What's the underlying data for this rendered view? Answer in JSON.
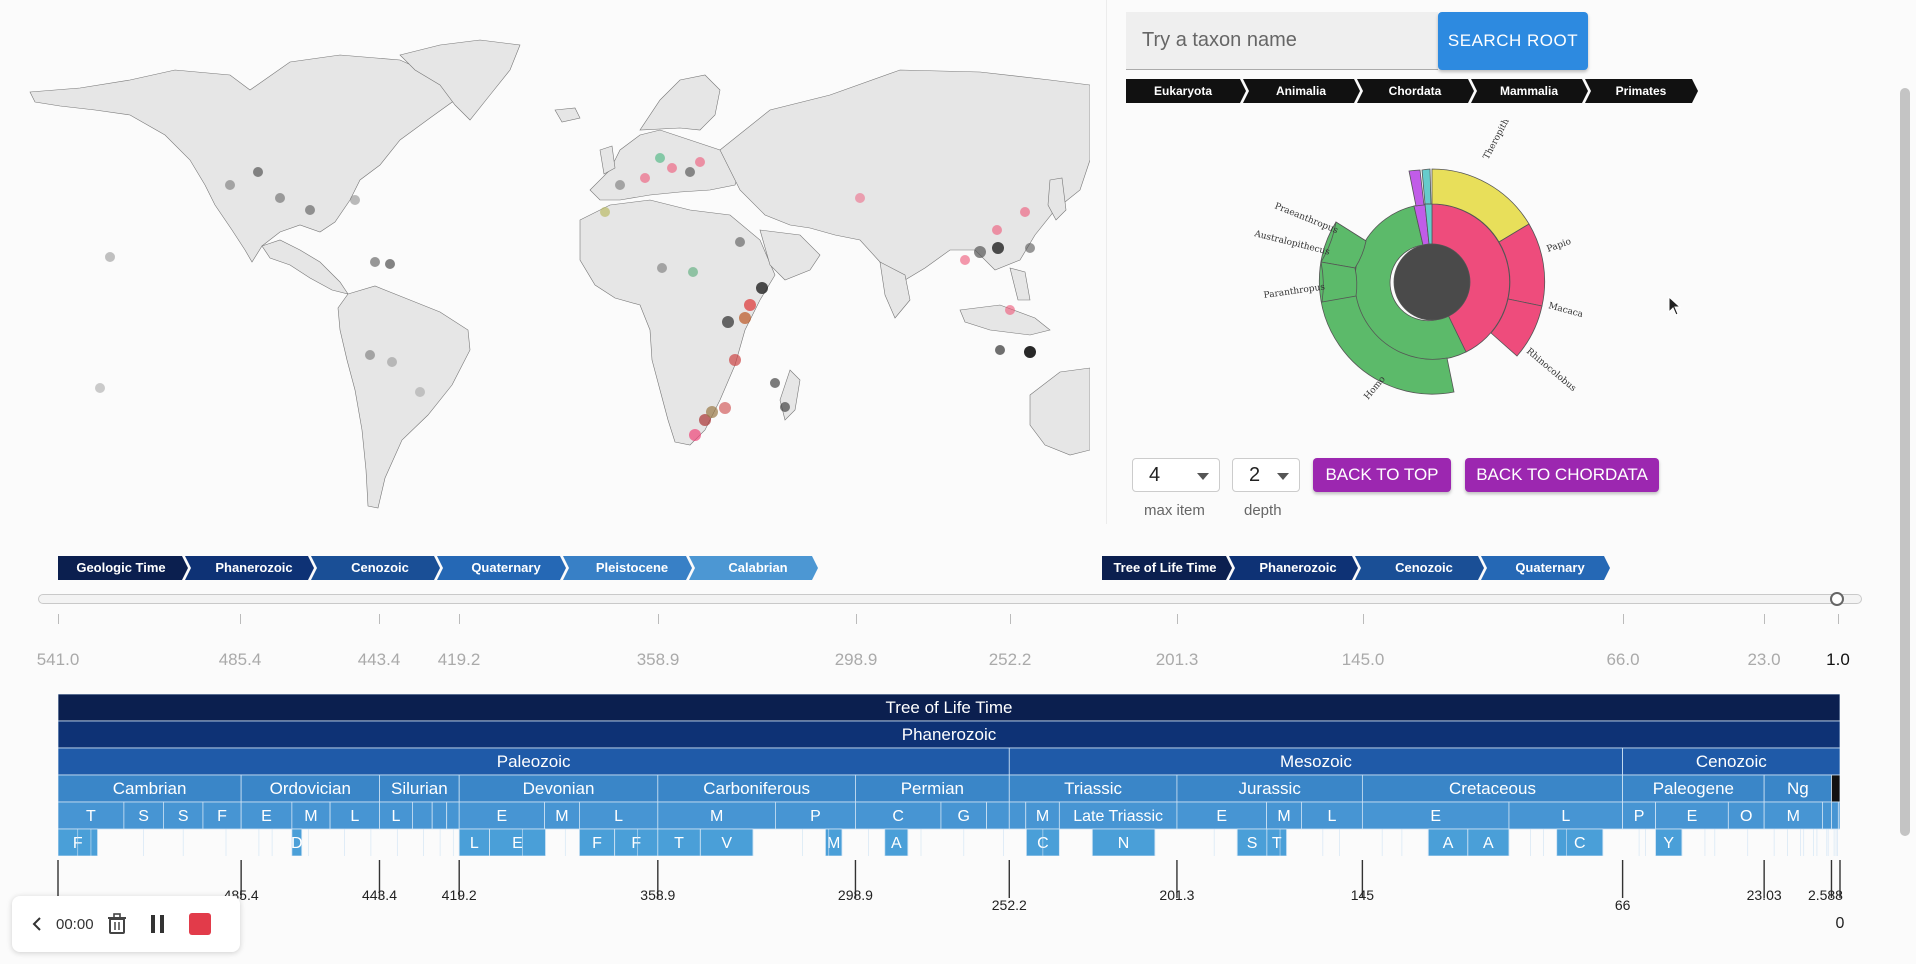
{
  "search": {
    "placeholder": "Try a taxon name",
    "button_label": "SEARCH ROOT"
  },
  "taxon_breadcrumb": [
    "Eukaryota",
    "Animalia",
    "Chordata",
    "Mammalia",
    "Primates"
  ],
  "sunburst": {
    "labels": [
      "Theropithecus",
      "Papio",
      "Macaca",
      "Rhinocolobus",
      "Homo",
      "Paranthropus",
      "Australopithecus",
      "Praeanthropus"
    ],
    "colors": {
      "center": "#4a4a4a",
      "hominid": "#5cba6a",
      "cercopithecid": "#ee4c7c",
      "theropithecus": "#e8df5a",
      "other": "#c15ce8"
    }
  },
  "controls": {
    "max_item_value": "4",
    "max_item_caption": "max item",
    "depth_value": "2",
    "depth_caption": "depth",
    "back_to_top": "BACK TO TOP",
    "back_to_chordata": "BACK TO CHORDATA"
  },
  "geo_breadcrumb": [
    "Geologic Time",
    "Phanerozoic",
    "Cenozoic",
    "Quaternary",
    "Pleistocene",
    "Calabrian"
  ],
  "tree_breadcrumb": [
    "Tree of Life Time",
    "Phanerozoic",
    "Cenozoic",
    "Quaternary"
  ],
  "time_scale": {
    "labels": [
      "541.0",
      "485.4",
      "443.4",
      "419.2",
      "358.9",
      "298.9",
      "252.2",
      "201.3",
      "145.0",
      "66.0",
      "23.0",
      "1.0"
    ],
    "selected": "1.0"
  },
  "chart_data": {
    "type": "table",
    "max_ma": 541,
    "min_ma": 0,
    "rows": [
      {
        "level": "root",
        "units": [
          {
            "name": "Tree of Life Time",
            "start": 541,
            "end": 0
          }
        ]
      },
      {
        "level": "eon",
        "units": [
          {
            "name": "Phanerozoic",
            "start": 541,
            "end": 0
          }
        ]
      },
      {
        "level": "era",
        "units": [
          {
            "name": "Paleozoic",
            "start": 541,
            "end": 252.2
          },
          {
            "name": "Mesozoic",
            "start": 252.2,
            "end": 66
          },
          {
            "name": "Cenozoic",
            "start": 66,
            "end": 0
          }
        ]
      },
      {
        "level": "period",
        "units": [
          {
            "name": "Cambrian",
            "start": 541,
            "end": 485.4
          },
          {
            "name": "Ordovician",
            "start": 485.4,
            "end": 443.4
          },
          {
            "name": "Silurian",
            "start": 443.4,
            "end": 419.2
          },
          {
            "name": "Devonian",
            "start": 419.2,
            "end": 358.9
          },
          {
            "name": "Carboniferous",
            "start": 358.9,
            "end": 298.9
          },
          {
            "name": "Permian",
            "start": 298.9,
            "end": 252.2
          },
          {
            "name": "Triassic",
            "start": 252.2,
            "end": 201.3
          },
          {
            "name": "Jurassic",
            "start": 201.3,
            "end": 145
          },
          {
            "name": "Cretaceous",
            "start": 145,
            "end": 66
          },
          {
            "name": "Paleogene",
            "start": 66,
            "end": 23.03
          },
          {
            "name": "Ng",
            "start": 23.03,
            "end": 2.588
          },
          {
            "name": "",
            "start": 2.588,
            "end": 0
          }
        ]
      },
      {
        "level": "epoch",
        "units": [
          {
            "name": "T",
            "start": 541,
            "end": 521
          },
          {
            "name": "S",
            "start": 521,
            "end": 509
          },
          {
            "name": "S",
            "start": 509,
            "end": 497
          },
          {
            "name": "F",
            "start": 497,
            "end": 485.4
          },
          {
            "name": "E",
            "start": 485.4,
            "end": 470
          },
          {
            "name": "M",
            "start": 470,
            "end": 458.4
          },
          {
            "name": "L",
            "start": 458.4,
            "end": 443.4
          },
          {
            "name": "L",
            "start": 443.4,
            "end": 433.4
          },
          {
            "name": "",
            "start": 433.4,
            "end": 427.4
          },
          {
            "name": "",
            "start": 427.4,
            "end": 423
          },
          {
            "name": "",
            "start": 423,
            "end": 419.2
          },
          {
            "name": "E",
            "start": 419.2,
            "end": 393.3
          },
          {
            "name": "M",
            "start": 393.3,
            "end": 382.7
          },
          {
            "name": "L",
            "start": 382.7,
            "end": 358.9
          },
          {
            "name": "M",
            "start": 358.9,
            "end": 323.2
          },
          {
            "name": "P",
            "start": 323.2,
            "end": 298.9
          },
          {
            "name": "C",
            "start": 298.9,
            "end": 272.95
          },
          {
            "name": "G",
            "start": 272.95,
            "end": 259.1
          },
          {
            "name": "",
            "start": 259.1,
            "end": 252.2
          },
          {
            "name": "",
            "start": 252.2,
            "end": 247.2
          },
          {
            "name": "M",
            "start": 247.2,
            "end": 237
          },
          {
            "name": "Late Triassic",
            "start": 237,
            "end": 201.3
          },
          {
            "name": "E",
            "start": 201.3,
            "end": 174.1
          },
          {
            "name": "M",
            "start": 174.1,
            "end": 163.5
          },
          {
            "name": "L",
            "start": 163.5,
            "end": 145
          },
          {
            "name": "E",
            "start": 145,
            "end": 100.5
          },
          {
            "name": "L",
            "start": 100.5,
            "end": 66
          },
          {
            "name": "P",
            "start": 66,
            "end": 56
          },
          {
            "name": "E",
            "start": 56,
            "end": 33.9
          },
          {
            "name": "O",
            "start": 33.9,
            "end": 23.03
          },
          {
            "name": "M",
            "start": 23.03,
            "end": 5.333
          },
          {
            "name": "",
            "start": 5.333,
            "end": 2.588
          },
          {
            "name": "",
            "start": 2.588,
            "end": 0.5
          },
          {
            "name": "",
            "start": 0.5,
            "end": 0
          }
        ]
      },
      {
        "level": "age",
        "units": [
          {
            "name": "F",
            "start": 541,
            "end": 529
          },
          {
            "name": "D",
            "start": 470,
            "end": 467
          },
          {
            "name": "L",
            "start": 419.2,
            "end": 410
          },
          {
            "name": "E",
            "start": 410,
            "end": 393
          },
          {
            "name": "F",
            "start": 382.7,
            "end": 372
          },
          {
            "name": "F",
            "start": 372,
            "end": 358.9
          },
          {
            "name": "T",
            "start": 358.9,
            "end": 346
          },
          {
            "name": "V",
            "start": 346,
            "end": 330
          },
          {
            "name": "M",
            "start": 308,
            "end": 303
          },
          {
            "name": "A",
            "start": 290,
            "end": 283
          },
          {
            "name": "C",
            "start": 247,
            "end": 237
          },
          {
            "name": "N",
            "start": 227,
            "end": 208
          },
          {
            "name": "S",
            "start": 183,
            "end": 174
          },
          {
            "name": "T",
            "start": 174,
            "end": 168
          },
          {
            "name": "A",
            "start": 125,
            "end": 113
          },
          {
            "name": "A",
            "start": 113,
            "end": 100.5
          },
          {
            "name": "C",
            "start": 86,
            "end": 72
          },
          {
            "name": "Y",
            "start": 56,
            "end": 48
          }
        ]
      }
    ],
    "ticks": [
      "485.4",
      "443.4",
      "419.2",
      "358.9",
      "298.9",
      "252.2",
      "201.3",
      "145",
      "66",
      "23.03",
      "2.588",
      "0"
    ]
  },
  "recorder": {
    "time": "00:00"
  },
  "colors": {
    "root": "#0b1f4f",
    "eon": "#0e3275",
    "era": "#1f5aa8",
    "period": "#3a86c8",
    "epoch": "#4795d3",
    "age": "#4a9fd8"
  }
}
